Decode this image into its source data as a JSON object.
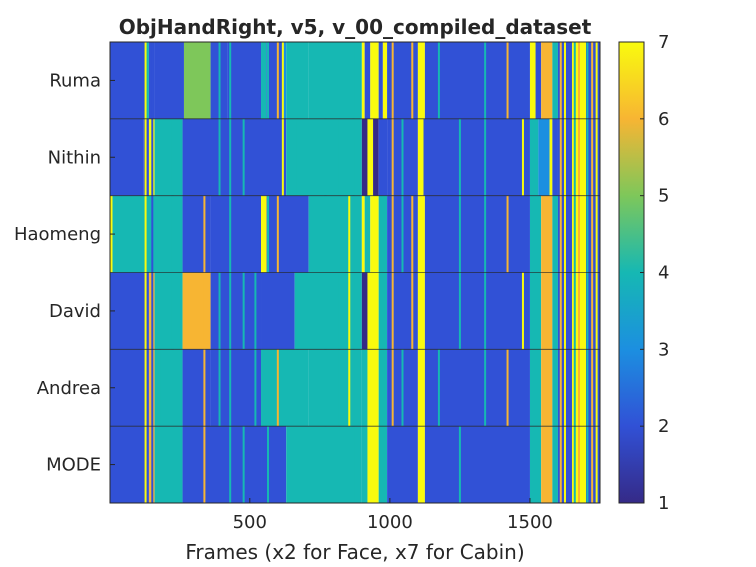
{
  "chart_data": {
    "type": "heatmap",
    "title": "ObjHandRight, v5, v_00_compiled_dataset",
    "xlabel": "Frames (x2 for Face, x7 for Cabin)",
    "ylabel": "",
    "xlim": [
      1,
      1750
    ],
    "x_ticks": [
      500,
      1000,
      1500
    ],
    "x_tick_labels": [
      "500",
      "1000",
      "1500"
    ],
    "rows": [
      "Ruma",
      "Nithin",
      "Haomeng",
      "David",
      "Andrea",
      "MODE"
    ],
    "colorbar": {
      "min": 1,
      "max": 7,
      "ticks": [
        1,
        2,
        3,
        4,
        5,
        6,
        7
      ],
      "tick_labels": [
        "1",
        "2",
        "3",
        "4",
        "5",
        "6",
        "7"
      ],
      "colormap": "parula"
    },
    "grid": "horizontal lines between rows",
    "segments": [
      {
        "row": "Ruma",
        "runs": [
          [
            1,
            130,
            2
          ],
          [
            130,
            140,
            4
          ],
          [
            140,
            160,
            2
          ],
          [
            160,
            265,
            2
          ],
          [
            265,
            360,
            5
          ],
          [
            360,
            420,
            2
          ],
          [
            420,
            540,
            2
          ],
          [
            540,
            560,
            4
          ],
          [
            560,
            620,
            2
          ],
          [
            620,
            630,
            3
          ],
          [
            630,
            710,
            4
          ],
          [
            710,
            900,
            4
          ],
          [
            900,
            910,
            7
          ],
          [
            910,
            930,
            2
          ],
          [
            930,
            960,
            7
          ],
          [
            960,
            975,
            2
          ],
          [
            975,
            990,
            7
          ],
          [
            990,
            1100,
            2
          ],
          [
            1100,
            1125,
            7
          ],
          [
            1125,
            1500,
            2
          ],
          [
            1500,
            1520,
            7
          ],
          [
            1520,
            1540,
            2
          ],
          [
            1540,
            1580,
            6
          ],
          [
            1580,
            1600,
            4
          ],
          [
            1600,
            1650,
            2
          ],
          [
            1650,
            1700,
            7
          ],
          [
            1700,
            1750,
            2
          ]
        ]
      },
      {
        "row": "Nithin",
        "runs": [
          [
            1,
            120,
            2
          ],
          [
            120,
            140,
            2
          ],
          [
            140,
            160,
            7
          ],
          [
            160,
            260,
            4
          ],
          [
            260,
            630,
            2
          ],
          [
            630,
            900,
            4
          ],
          [
            900,
            920,
            1
          ],
          [
            920,
            940,
            7
          ],
          [
            940,
            960,
            1
          ],
          [
            960,
            990,
            2
          ],
          [
            990,
            1100,
            2
          ],
          [
            1100,
            1120,
            7
          ],
          [
            1120,
            1500,
            2
          ],
          [
            1500,
            1530,
            4
          ],
          [
            1530,
            1570,
            3
          ],
          [
            1570,
            1580,
            7
          ],
          [
            1580,
            1600,
            2
          ],
          [
            1600,
            1650,
            2
          ],
          [
            1650,
            1700,
            7
          ],
          [
            1700,
            1750,
            2
          ]
        ]
      },
      {
        "row": "Haomeng",
        "runs": [
          [
            1,
            10,
            7
          ],
          [
            10,
            260,
            4
          ],
          [
            260,
            360,
            2
          ],
          [
            360,
            540,
            2
          ],
          [
            540,
            560,
            7
          ],
          [
            560,
            710,
            2
          ],
          [
            710,
            900,
            4
          ],
          [
            900,
            910,
            7
          ],
          [
            910,
            930,
            4
          ],
          [
            930,
            960,
            7
          ],
          [
            960,
            990,
            4
          ],
          [
            990,
            1100,
            2
          ],
          [
            1100,
            1125,
            7
          ],
          [
            1125,
            1500,
            2
          ],
          [
            1500,
            1540,
            4
          ],
          [
            1540,
            1580,
            6
          ],
          [
            1580,
            1600,
            4
          ],
          [
            1600,
            1650,
            2
          ],
          [
            1650,
            1700,
            7
          ],
          [
            1700,
            1750,
            2
          ]
        ]
      },
      {
        "row": "David",
        "runs": [
          [
            1,
            140,
            2
          ],
          [
            140,
            160,
            6
          ],
          [
            160,
            260,
            4
          ],
          [
            260,
            360,
            6
          ],
          [
            360,
            540,
            2
          ],
          [
            540,
            660,
            2
          ],
          [
            660,
            900,
            4
          ],
          [
            900,
            920,
            1
          ],
          [
            920,
            960,
            7
          ],
          [
            960,
            990,
            4
          ],
          [
            990,
            1100,
            2
          ],
          [
            1100,
            1125,
            7
          ],
          [
            1125,
            1500,
            2
          ],
          [
            1500,
            1540,
            4
          ],
          [
            1540,
            1580,
            6
          ],
          [
            1580,
            1600,
            4
          ],
          [
            1600,
            1650,
            2
          ],
          [
            1650,
            1700,
            7
          ],
          [
            1700,
            1750,
            2
          ]
        ]
      },
      {
        "row": "Andrea",
        "runs": [
          [
            1,
            140,
            2
          ],
          [
            140,
            160,
            6
          ],
          [
            160,
            260,
            4
          ],
          [
            260,
            360,
            2
          ],
          [
            360,
            540,
            2
          ],
          [
            540,
            710,
            4
          ],
          [
            710,
            900,
            4
          ],
          [
            900,
            920,
            4
          ],
          [
            920,
            960,
            7
          ],
          [
            960,
            990,
            4
          ],
          [
            990,
            1100,
            2
          ],
          [
            1100,
            1125,
            7
          ],
          [
            1125,
            1500,
            2
          ],
          [
            1500,
            1540,
            4
          ],
          [
            1540,
            1580,
            6
          ],
          [
            1580,
            1600,
            4
          ],
          [
            1600,
            1650,
            2
          ],
          [
            1650,
            1700,
            7
          ],
          [
            1700,
            1750,
            2
          ]
        ]
      },
      {
        "row": "MODE",
        "runs": [
          [
            1,
            140,
            2
          ],
          [
            140,
            160,
            6
          ],
          [
            160,
            260,
            4
          ],
          [
            260,
            540,
            2
          ],
          [
            540,
            630,
            2
          ],
          [
            630,
            900,
            4
          ],
          [
            900,
            920,
            4
          ],
          [
            920,
            960,
            7
          ],
          [
            960,
            990,
            4
          ],
          [
            990,
            1100,
            2
          ],
          [
            1100,
            1125,
            7
          ],
          [
            1125,
            1500,
            2
          ],
          [
            1500,
            1540,
            4
          ],
          [
            1540,
            1580,
            6
          ],
          [
            1580,
            1600,
            4
          ],
          [
            1600,
            1650,
            2
          ],
          [
            1650,
            1700,
            7
          ],
          [
            1700,
            1750,
            2
          ]
        ]
      }
    ],
    "thin_stripes": [
      {
        "x": 128,
        "value": 7,
        "rows": "all"
      },
      {
        "x": 152,
        "value": 2,
        "rows": "all"
      },
      {
        "x": 178,
        "value": 4,
        "rows": [
          4
        ]
      },
      {
        "x": 225,
        "value": 4,
        "rows": [
          1,
          2,
          3
        ]
      },
      {
        "x": 338,
        "value": 6,
        "rows": [
          2,
          3,
          4,
          5
        ]
      },
      {
        "x": 392,
        "value": 4,
        "rows": [
          0,
          1,
          3,
          4
        ]
      },
      {
        "x": 430,
        "value": 4,
        "rows": "all"
      },
      {
        "x": 478,
        "value": 4,
        "rows": [
          1,
          3,
          5
        ]
      },
      {
        "x": 520,
        "value": 4,
        "rows": [
          3,
          4
        ]
      },
      {
        "x": 565,
        "value": 4,
        "rows": [
          0,
          2,
          5
        ]
      },
      {
        "x": 600,
        "value": 6,
        "rows": [
          0,
          2,
          4
        ]
      },
      {
        "x": 618,
        "value": 7,
        "rows": [
          0,
          1
        ]
      },
      {
        "x": 670,
        "value": 4,
        "rows": [
          1,
          3
        ]
      },
      {
        "x": 770,
        "value": 4,
        "rows": [
          0,
          2,
          3,
          4
        ]
      },
      {
        "x": 820,
        "value": 4,
        "rows": [
          1,
          3,
          4
        ]
      },
      {
        "x": 855,
        "value": 7,
        "rows": [
          2,
          3,
          4
        ]
      },
      {
        "x": 870,
        "value": 4,
        "rows": "all"
      },
      {
        "x": 1010,
        "value": 6,
        "rows": [
          0,
          1,
          2,
          3,
          4
        ]
      },
      {
        "x": 1045,
        "value": 4,
        "rows": [
          1,
          2,
          4
        ]
      },
      {
        "x": 1080,
        "value": 6,
        "rows": [
          0,
          2,
          3
        ]
      },
      {
        "x": 1175,
        "value": 4,
        "rows": [
          0,
          4
        ]
      },
      {
        "x": 1250,
        "value": 4,
        "rows": [
          1,
          2,
          3,
          5
        ]
      },
      {
        "x": 1340,
        "value": 4,
        "rows": [
          0,
          1,
          2,
          3,
          4
        ]
      },
      {
        "x": 1420,
        "value": 6,
        "rows": [
          0,
          2,
          4
        ]
      },
      {
        "x": 1475,
        "value": 7,
        "rows": [
          1,
          3
        ]
      },
      {
        "x": 1610,
        "value": 6,
        "rows": "all"
      },
      {
        "x": 1625,
        "value": 7,
        "rows": "all"
      },
      {
        "x": 1660,
        "value": 4,
        "rows": "all"
      },
      {
        "x": 1675,
        "value": 6,
        "rows": "all"
      },
      {
        "x": 1688,
        "value": 7,
        "rows": "all"
      },
      {
        "x": 1705,
        "value": 4,
        "rows": "all"
      },
      {
        "x": 1722,
        "value": 6,
        "rows": "all"
      },
      {
        "x": 1738,
        "value": 7,
        "rows": "all"
      }
    ]
  }
}
